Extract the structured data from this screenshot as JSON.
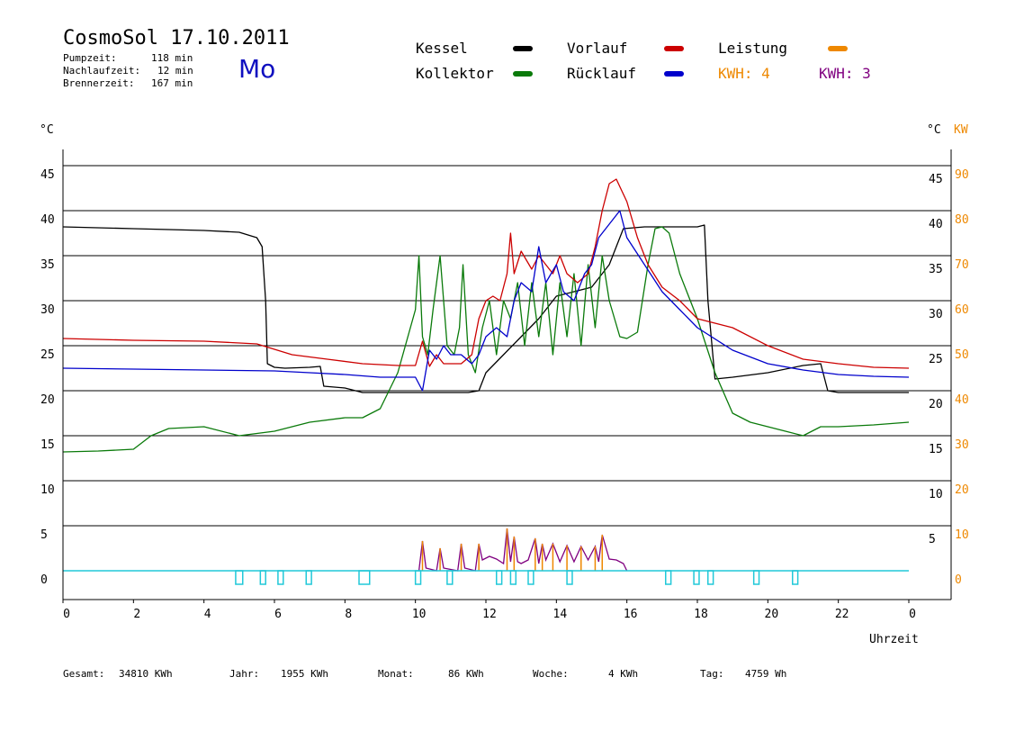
{
  "header": {
    "title": "CosmoSol 17.10.2011",
    "day": "Mo",
    "pump_label": "Pumpzeit:",
    "pump_value": "118 min",
    "nachlauf_label": "Nachlaufzeit:",
    "nachlauf_value": "12 min",
    "brenner_label": "Brennerzeit:",
    "brenner_value": "167 min"
  },
  "legend": {
    "kessel": "Kessel",
    "kollektor": "Kollektor",
    "vorlauf": "Vorlauf",
    "ruecklauf": "Rücklauf",
    "leistung": "Leistung",
    "kwh1": "KWH: 4",
    "kwh2": "KWH: 3"
  },
  "colors": {
    "kessel": "#000000",
    "kollektor": "#0a7a0a",
    "vorlauf": "#cc0000",
    "ruecklauf": "#0000cc",
    "leistung": "#ee8800",
    "kwh2": "#800080",
    "pump": "#20c8d8"
  },
  "axes": {
    "left_unit": "°C",
    "right_unit": "°C",
    "right_unit2": "KW",
    "xlabel": "Uhrzeit"
  },
  "footer": {
    "gesamt_label": "Gesamt:",
    "gesamt_value": "34810 KWh",
    "jahr_label": "Jahr:",
    "jahr_value": "1955 KWh",
    "monat_label": "Monat:",
    "monat_value": "86 KWh",
    "woche_label": "Woche:",
    "woche_value": "4 KWh",
    "tag_label": "Tag:",
    "tag_value": "4759 Wh"
  },
  "chart_data": {
    "type": "line",
    "title": "CosmoSol 17.10.2011",
    "xlabel": "Uhrzeit",
    "xlim": [
      0,
      24
    ],
    "ylim": [
      -3,
      47
    ],
    "x_ticks": [
      "0",
      "2",
      "4",
      "6",
      "8",
      "10",
      "12",
      "14",
      "16",
      "18",
      "20",
      "22",
      "0"
    ],
    "y_ticks_left": [
      "0",
      "5",
      "10",
      "15",
      "20",
      "25",
      "30",
      "35",
      "40",
      "45"
    ],
    "y_ticks_right_temp": [
      "5",
      "10",
      "15",
      "20",
      "25",
      "30",
      "35",
      "40",
      "45"
    ],
    "y_ticks_right_kw": [
      "0",
      "10",
      "20",
      "30",
      "40",
      "50",
      "60",
      "70",
      "80",
      "90"
    ],
    "series": [
      {
        "name": "Kessel",
        "x": [
          0,
          2,
          4,
          5,
          5.5,
          5.65,
          5.75,
          5.8,
          6.0,
          6.3,
          7.0,
          7.3,
          7.4,
          8.0,
          8.5,
          9.0,
          10.0,
          10.6,
          11.5,
          11.8,
          12.0,
          12.5,
          13.0,
          13.5,
          14.0,
          14.5,
          15.0,
          15.5,
          15.9,
          16.5,
          17.0,
          18.0,
          18.2,
          18.3,
          18.5,
          19.0,
          20.0,
          21.0,
          21.5,
          21.7,
          22.0,
          23.0,
          24.0
        ],
        "values": [
          38.2,
          38.0,
          37.8,
          37.6,
          37.0,
          36.0,
          30.0,
          23.0,
          22.6,
          22.5,
          22.6,
          22.7,
          20.5,
          20.3,
          19.8,
          19.8,
          19.8,
          19.8,
          19.8,
          20.0,
          22.0,
          24.0,
          26.0,
          28.0,
          30.5,
          31.0,
          31.5,
          34.0,
          38.0,
          38.2,
          38.2,
          38.2,
          38.4,
          30.0,
          21.3,
          21.5,
          22.0,
          22.8,
          23.0,
          20.0,
          19.8,
          19.8,
          19.8
        ]
      },
      {
        "name": "Kollektor",
        "x": [
          0,
          1,
          2,
          2.5,
          3,
          4,
          5,
          6,
          7,
          8,
          8.5,
          9,
          9.5,
          10,
          10.1,
          10.2,
          10.35,
          10.5,
          10.7,
          10.9,
          11.1,
          11.25,
          11.35,
          11.5,
          11.7,
          11.9,
          12.1,
          12.3,
          12.5,
          12.7,
          12.9,
          13.1,
          13.3,
          13.5,
          13.7,
          13.9,
          14.1,
          14.3,
          14.5,
          14.7,
          14.9,
          15.1,
          15.3,
          15.5,
          15.8,
          16.0,
          16.3,
          16.6,
          16.8,
          17.0,
          17.2,
          17.5,
          18.0,
          18.5,
          19.0,
          19.5,
          20.0,
          20.5,
          21.0,
          21.5,
          22.0,
          23.0,
          24.0
        ],
        "values": [
          13.2,
          13.3,
          13.5,
          15.0,
          15.8,
          16.0,
          15.0,
          15.5,
          16.5,
          17.0,
          17.0,
          18.0,
          22.0,
          29.0,
          35.0,
          26.0,
          24.0,
          29.0,
          35.0,
          25.0,
          24.0,
          27.0,
          34.0,
          24.0,
          22.0,
          27.0,
          30.0,
          24.0,
          30.0,
          28.0,
          32.0,
          25.0,
          32.0,
          26.0,
          32.0,
          24.0,
          32.0,
          26.0,
          33.0,
          25.0,
          34.0,
          27.0,
          35.0,
          30.0,
          26.0,
          25.8,
          26.5,
          34.0,
          38.0,
          38.2,
          37.5,
          33.0,
          28.0,
          22.0,
          17.5,
          16.5,
          16.0,
          15.5,
          15.0,
          16.0,
          16.0,
          16.2,
          16.5
        ]
      },
      {
        "name": "Vorlauf",
        "x": [
          0,
          2,
          4,
          5.5,
          6.5,
          7.5,
          8.5,
          9.5,
          10.0,
          10.2,
          10.4,
          10.6,
          10.8,
          11.0,
          11.3,
          11.6,
          11.8,
          12.0,
          12.2,
          12.4,
          12.6,
          12.7,
          12.8,
          13.0,
          13.3,
          13.5,
          13.7,
          13.9,
          14.1,
          14.3,
          14.6,
          14.9,
          15.1,
          15.3,
          15.5,
          15.7,
          16.0,
          16.3,
          16.6,
          17.0,
          17.5,
          18.0,
          19.0,
          20.0,
          21.0,
          22.0,
          23.0,
          24.0
        ],
        "values": [
          25.8,
          25.6,
          25.5,
          25.2,
          24.0,
          23.5,
          23.0,
          22.8,
          22.8,
          25.5,
          22.7,
          24.0,
          23.0,
          23.0,
          23.0,
          24.0,
          28.0,
          30.0,
          30.5,
          30.0,
          33.0,
          37.5,
          33.0,
          35.5,
          33.5,
          35.0,
          34.0,
          33.0,
          35.0,
          33.0,
          32.0,
          33.0,
          36.0,
          40.0,
          43.0,
          43.5,
          41.0,
          37.0,
          34.0,
          31.5,
          30.0,
          28.0,
          27.0,
          25.0,
          23.5,
          23.0,
          22.6,
          22.5
        ]
      },
      {
        "name": "Rücklauf",
        "x": [
          0,
          2,
          4,
          6,
          7,
          8,
          9,
          10,
          10.2,
          10.4,
          10.6,
          10.8,
          11.0,
          11.3,
          11.6,
          11.8,
          12.0,
          12.3,
          12.6,
          12.8,
          13.0,
          13.3,
          13.5,
          13.7,
          14.0,
          14.2,
          14.5,
          14.8,
          15.0,
          15.2,
          15.4,
          15.6,
          15.8,
          16.0,
          16.5,
          17.0,
          17.5,
          18.0,
          19.0,
          20.0,
          21.0,
          22.0,
          23.0,
          24.0
        ],
        "values": [
          22.5,
          22.4,
          22.3,
          22.2,
          22.0,
          21.8,
          21.5,
          21.5,
          20.0,
          24.5,
          23.5,
          25.0,
          24.0,
          24.0,
          23.0,
          24.0,
          26.0,
          27.0,
          26.0,
          30.0,
          32.0,
          31.0,
          36.0,
          32.0,
          34.0,
          31.0,
          30.0,
          33.0,
          34.0,
          37.0,
          38.0,
          39.0,
          40.0,
          37.0,
          34.0,
          31.0,
          29.0,
          27.0,
          24.5,
          23.0,
          22.3,
          21.8,
          21.6,
          21.5
        ]
      },
      {
        "name": "Leistung",
        "x": [
          10.1,
          10.2,
          10.3,
          10.6,
          10.7,
          10.8,
          11.2,
          11.3,
          11.4,
          11.7,
          11.8,
          11.9,
          12.1,
          12.3,
          12.5,
          12.6,
          12.7,
          12.8,
          12.9,
          13.0,
          13.2,
          13.4,
          13.5,
          13.6,
          13.7,
          13.9,
          14.1,
          14.3,
          14.5,
          14.7,
          14.9,
          15.1,
          15.2,
          15.3,
          15.5,
          15.7,
          15.9,
          16.0
        ],
        "values": [
          0.0,
          3.3,
          0.3,
          0.0,
          2.5,
          0.3,
          0.0,
          3.0,
          0.3,
          0.0,
          3.0,
          1.2,
          1.6,
          1.3,
          0.8,
          4.7,
          1.0,
          3.8,
          1.0,
          0.8,
          1.2,
          3.6,
          0.8,
          3.0,
          1.2,
          3.0,
          1.0,
          2.8,
          1.0,
          2.7,
          1.2,
          2.7,
          1.0,
          4.0,
          1.3,
          1.2,
          0.8,
          0.0
        ]
      },
      {
        "name": "Pumpe",
        "x": [
          4.9,
          5.1,
          5.6,
          5.75,
          6.1,
          6.25,
          6.9,
          7.05,
          8.4,
          8.7,
          10.0,
          10.15,
          10.9,
          11.05,
          12.3,
          12.45,
          12.7,
          12.85,
          13.2,
          13.35,
          14.3,
          14.45,
          17.1,
          17.25,
          17.9,
          18.05,
          18.3,
          18.45,
          19.6,
          19.75,
          20.7,
          20.85
        ],
        "values": [
          -1.5,
          -1.5,
          -1.5,
          -1.5,
          -1.5,
          -1.5,
          -1.5,
          -1.5,
          -1.5,
          -1.5,
          -1.5,
          -1.5,
          -1.5,
          -1.5,
          -1.5,
          -1.5,
          -1.5,
          -1.5,
          -1.5,
          -1.5,
          -1.5,
          -1.5,
          -1.5,
          -1.5,
          -1.5,
          -1.5,
          -1.5,
          -1.5,
          -1.5,
          -1.5,
          -1.5,
          -1.5
        ]
      }
    ]
  }
}
